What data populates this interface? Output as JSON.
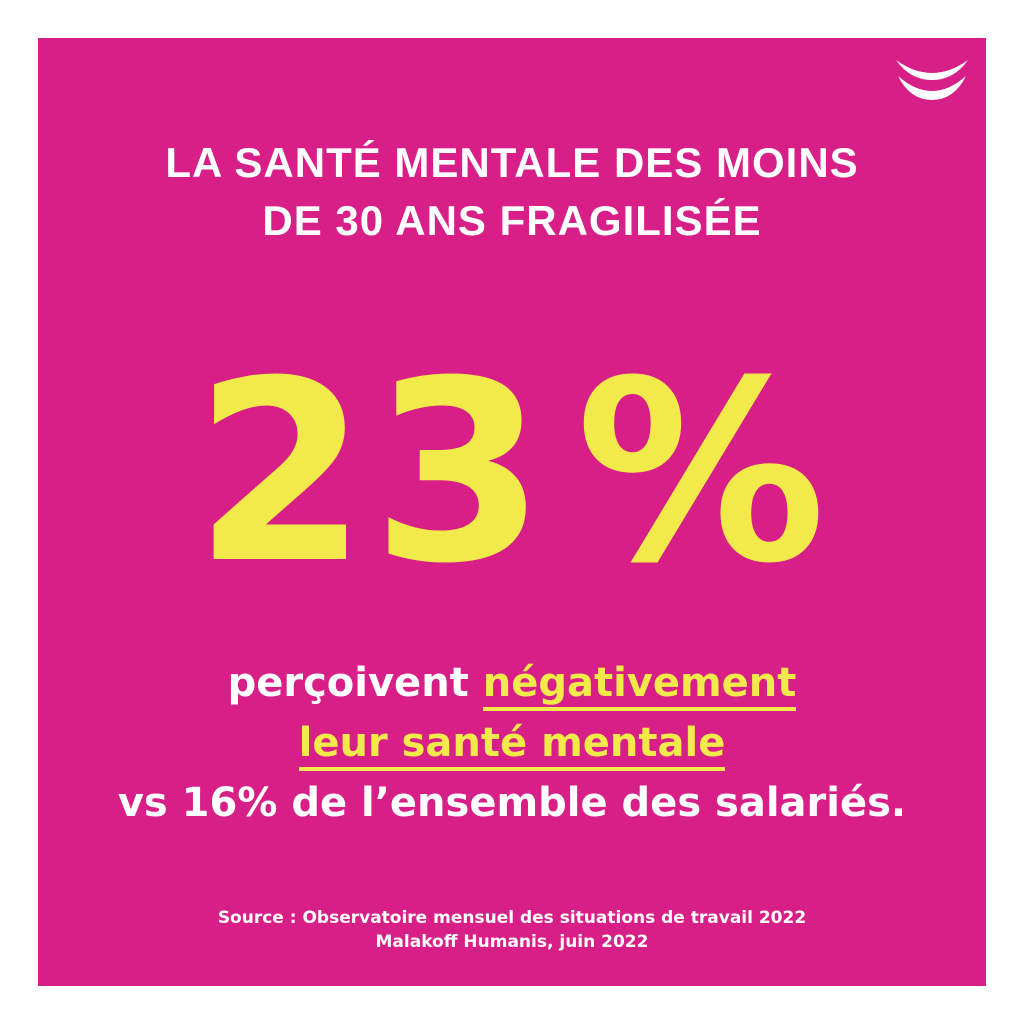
{
  "brand": {
    "logo_icon": "smile-arcs-icon",
    "background_color": "#d81e87",
    "accent_color": "#f2ea4a",
    "text_color": "#ffffff"
  },
  "title": {
    "line1": "LA SANTÉ MENTALE DES MOINS",
    "line2": "DE 30 ANS FRAGILISÉE"
  },
  "stat": {
    "value": "23",
    "unit": "%"
  },
  "body": {
    "prefix": "perçoivent ",
    "highlight_line1": "négativement ",
    "highlight_line2": "leur santé mentale",
    "suffix": "vs 16% de l’ensemble des salariés."
  },
  "source": {
    "line1": "Source : Observatoire mensuel des situations de travail 2022",
    "line2": "Malakoff Humanis, juin 2022"
  }
}
